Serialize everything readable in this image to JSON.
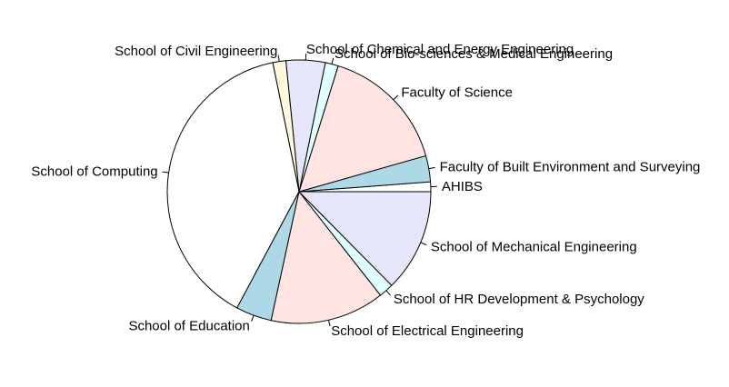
{
  "chart_data": {
    "type": "pie",
    "title": "",
    "start_angle_deg": 0,
    "direction": "counterclockwise",
    "slices": [
      {
        "label": "AHIBS",
        "value": 1.2,
        "color": "#ffffff"
      },
      {
        "label": "Faculty of Built Environment and Surveying",
        "value": 3.2,
        "color": "#add8e6"
      },
      {
        "label": "Faculty of Science",
        "value": 15.8,
        "color": "#ffe4e1"
      },
      {
        "label": "School of Bio-sciences & Medical Engineering",
        "value": 1.6,
        "color": "#e0ffff"
      },
      {
        "label": "School of Chemical and Energy Engineering",
        "value": 4.8,
        "color": "#e6e6fa"
      },
      {
        "label": "School of Civil Engineering",
        "value": 1.6,
        "color": "#fff8dc"
      },
      {
        "label": "School of Computing",
        "value": 39.0,
        "color": "#ffffff"
      },
      {
        "label": "School of Education",
        "value": 4.4,
        "color": "#add8e6"
      },
      {
        "label": "School of Electrical Engineering",
        "value": 14.0,
        "color": "#ffe4e1"
      },
      {
        "label": "School of HR Development & Psychology",
        "value": 1.8,
        "color": "#e0ffff"
      },
      {
        "label": "School of Mechanical Engineering",
        "value": 12.6,
        "color": "#e6e6fa"
      }
    ]
  }
}
